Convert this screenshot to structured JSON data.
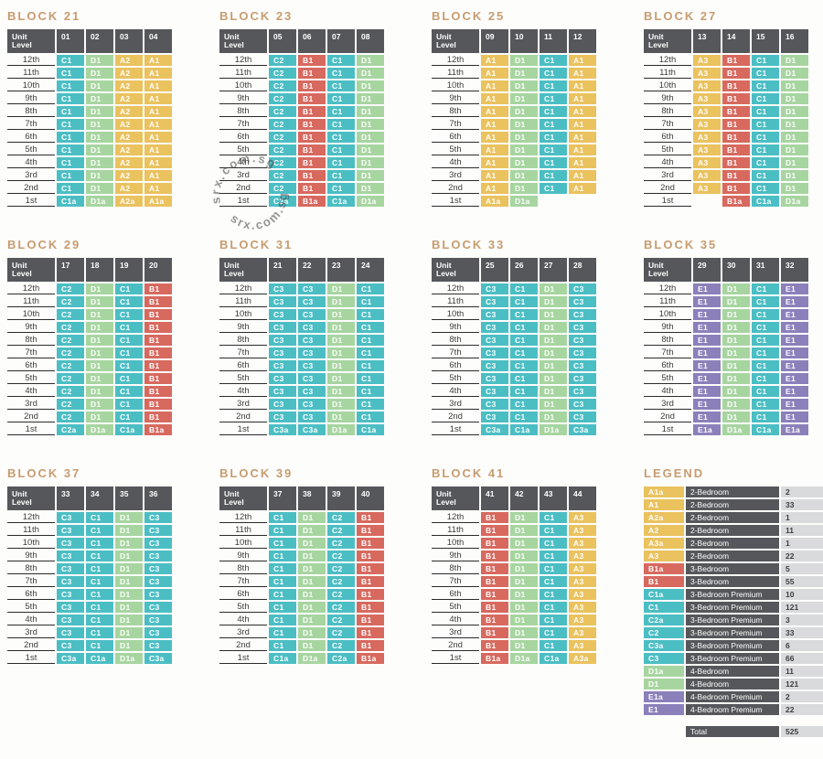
{
  "palette": {
    "title_text": "#c79c6f",
    "header_dark": "#56575b",
    "count_bg": "#d9dadc",
    "level_line": "#2b2b2b"
  },
  "type_colors": {
    "A": "#eac25e",
    "B": "#d7695f",
    "C": "#4bbec4",
    "D": "#a7d5a0",
    "E": "#8c80bb"
  },
  "level_header": [
    "Unit",
    "Level"
  ],
  "levels": [
    "12th",
    "11th",
    "10th",
    "9th",
    "8th",
    "7th",
    "6th",
    "5th",
    "4th",
    "3rd",
    "2nd",
    "1st"
  ],
  "blocks": [
    {
      "title": "BLOCK 21",
      "columns": [
        {
          "unit": "01",
          "typical": "C1",
          "first": "C1a"
        },
        {
          "unit": "02",
          "typical": "D1",
          "first": "D1a"
        },
        {
          "unit": "03",
          "typical": "A2",
          "first": "A2a"
        },
        {
          "unit": "04",
          "typical": "A1",
          "first": "A1a"
        }
      ]
    },
    {
      "title": "BLOCK 23",
      "columns": [
        {
          "unit": "05",
          "typical": "C2",
          "first": "C2a"
        },
        {
          "unit": "06",
          "typical": "B1",
          "first": "B1a"
        },
        {
          "unit": "07",
          "typical": "C1",
          "first": "C1a"
        },
        {
          "unit": "08",
          "typical": "D1",
          "first": "D1a"
        }
      ]
    },
    {
      "title": "BLOCK 25",
      "columns": [
        {
          "unit": "09",
          "typical": "A1",
          "first": "A1a"
        },
        {
          "unit": "10",
          "typical": "D1",
          "first": "D1a"
        },
        {
          "unit": "11",
          "typical": "C1",
          "first": ""
        },
        {
          "unit": "12",
          "typical": "A1",
          "first": ""
        }
      ]
    },
    {
      "title": "BLOCK 27",
      "columns": [
        {
          "unit": "13",
          "typical": "A3",
          "first": ""
        },
        {
          "unit": "14",
          "typical": "B1",
          "first": "B1a"
        },
        {
          "unit": "15",
          "typical": "C1",
          "first": "C1a"
        },
        {
          "unit": "16",
          "typical": "D1",
          "first": "D1a"
        }
      ]
    },
    {
      "title": "BLOCK 29",
      "columns": [
        {
          "unit": "17",
          "typical": "C2",
          "first": "C2a"
        },
        {
          "unit": "18",
          "typical": "D1",
          "first": "D1a"
        },
        {
          "unit": "19",
          "typical": "C1",
          "first": "C1a"
        },
        {
          "unit": "20",
          "typical": "B1",
          "first": "B1a"
        }
      ]
    },
    {
      "title": "BLOCK 31",
      "columns": [
        {
          "unit": "21",
          "typical": "C3",
          "first": "C3a"
        },
        {
          "unit": "22",
          "typical": "C3",
          "first": "C3a"
        },
        {
          "unit": "23",
          "typical": "D1",
          "first": "D1a"
        },
        {
          "unit": "24",
          "typical": "C1",
          "first": "C1a"
        }
      ]
    },
    {
      "title": "BLOCK 33",
      "columns": [
        {
          "unit": "25",
          "typical": "C3",
          "first": "C3a"
        },
        {
          "unit": "26",
          "typical": "C1",
          "first": "C1a"
        },
        {
          "unit": "27",
          "typical": "D1",
          "first": "D1a"
        },
        {
          "unit": "28",
          "typical": "C3",
          "first": "C3a"
        }
      ]
    },
    {
      "title": "BLOCK 35",
      "columns": [
        {
          "unit": "29",
          "typical": "E1",
          "first": "E1a"
        },
        {
          "unit": "30",
          "typical": "D1",
          "first": "D1a"
        },
        {
          "unit": "31",
          "typical": "C1",
          "first": "C1a"
        },
        {
          "unit": "32",
          "typical": "E1",
          "first": "E1a"
        }
      ]
    },
    {
      "title": "BLOCK 37",
      "columns": [
        {
          "unit": "33",
          "typical": "C3",
          "first": "C3a"
        },
        {
          "unit": "34",
          "typical": "C1",
          "first": "C1a"
        },
        {
          "unit": "35",
          "typical": "D1",
          "first": "D1a"
        },
        {
          "unit": "36",
          "typical": "C3",
          "first": "C3a"
        }
      ]
    },
    {
      "title": "BLOCK 39",
      "columns": [
        {
          "unit": "37",
          "typical": "C1",
          "first": "C1a"
        },
        {
          "unit": "38",
          "typical": "D1",
          "first": "D1a"
        },
        {
          "unit": "39",
          "typical": "C2",
          "first": "C2a"
        },
        {
          "unit": "40",
          "typical": "B1",
          "first": "B1a"
        }
      ]
    },
    {
      "title": "BLOCK 41",
      "columns": [
        {
          "unit": "41",
          "typical": "B1",
          "first": "B1a"
        },
        {
          "unit": "42",
          "typical": "D1",
          "first": "D1a"
        },
        {
          "unit": "43",
          "typical": "C1",
          "first": "C1a"
        },
        {
          "unit": "44",
          "typical": "A3",
          "first": "A3a"
        }
      ]
    }
  ],
  "legend": {
    "title": "LEGEND",
    "rows": [
      {
        "code": "A1a",
        "label": "2-Bedroom",
        "count": "2"
      },
      {
        "code": "A1",
        "label": "2-Bedroom",
        "count": "33"
      },
      {
        "code": "A2a",
        "label": "2-Bedroom",
        "count": "1"
      },
      {
        "code": "A2",
        "label": "2-Bedroom",
        "count": "11"
      },
      {
        "code": "A3a",
        "label": "2-Bedroom",
        "count": "1"
      },
      {
        "code": "A3",
        "label": "2-Bedroom",
        "count": "22"
      },
      {
        "code": "B1a",
        "label": "3-Bedroom",
        "count": "5"
      },
      {
        "code": "B1",
        "label": "3-Bedroom",
        "count": "55"
      },
      {
        "code": "C1a",
        "label": "3-Bedroom Premium",
        "count": "10"
      },
      {
        "code": "C1",
        "label": "3-Bedroom Premium",
        "count": "121"
      },
      {
        "code": "C2a",
        "label": "3-Bedroom Premium",
        "count": "3"
      },
      {
        "code": "C2",
        "label": "3-Bedroom Premium",
        "count": "33"
      },
      {
        "code": "C3a",
        "label": "3-Bedroom Premium",
        "count": "6"
      },
      {
        "code": "C3",
        "label": "3-Bedroom Premium",
        "count": "66"
      },
      {
        "code": "D1a",
        "label": "4-Bedroom",
        "count": "11"
      },
      {
        "code": "D1",
        "label": "4-Bedroom",
        "count": "121"
      },
      {
        "code": "E1a",
        "label": "4-Bedroom Premium",
        "count": "2"
      },
      {
        "code": "E1",
        "label": "4-Bedroom Premium",
        "count": "22"
      }
    ],
    "total_label": "Total",
    "total_count": "525"
  },
  "watermark": {
    "text": "srx.com.sg"
  }
}
